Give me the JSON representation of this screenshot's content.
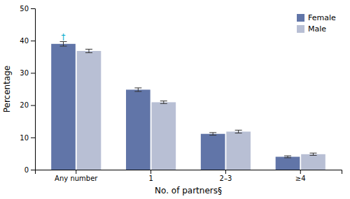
{
  "chart_data": {
    "type": "bar",
    "categories": [
      "Any number",
      "1",
      "2–3",
      "≥4"
    ],
    "series": [
      {
        "name": "Female",
        "color": "#6175a8",
        "values": [
          39.0,
          24.8,
          11.1,
          4.0
        ],
        "errors": [
          0.7,
          0.55,
          0.4,
          0.3
        ]
      },
      {
        "name": "Male",
        "color": "#b8bfd4",
        "values": [
          36.8,
          20.9,
          11.8,
          4.8
        ],
        "errors": [
          0.55,
          0.4,
          0.45,
          0.35
        ]
      }
    ],
    "xlabel": "No. of partners§",
    "ylabel": "Percentage",
    "ylim": [
      0,
      50
    ],
    "yticks": [
      0,
      10,
      20,
      30,
      40,
      50
    ],
    "grid": false,
    "legend": "upper right",
    "annotations": [
      {
        "text": "†",
        "category": "Any number",
        "series": "Female",
        "color": "#00aacc"
      }
    ]
  }
}
